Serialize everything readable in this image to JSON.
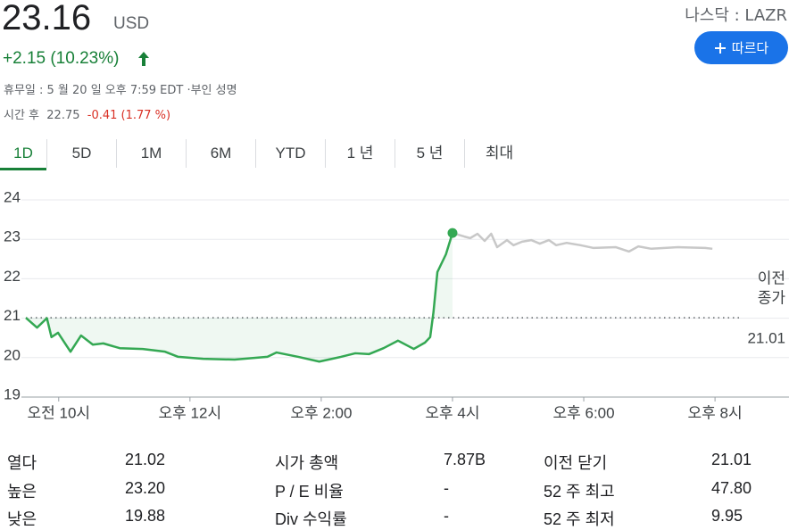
{
  "header": {
    "price": "23.16",
    "currency": "USD",
    "change": "+2.15 (10.23%)",
    "status": "휴무일 : 5 월 20 일 오후 7:59 EDT ·부인 성명",
    "after_hours": {
      "label": "시간 후",
      "price": "22.75",
      "change": "-0.41 (1.77 %)"
    },
    "exchange": "나스닥 : LAZR",
    "follow": "따르다"
  },
  "tabs": [
    "1D",
    "5D",
    "1M",
    "6M",
    "YTD",
    "1 년",
    "5 년",
    "최대"
  ],
  "chart_data": {
    "type": "line",
    "xlim": [
      9.5,
      21.1
    ],
    "ylim": [
      19,
      24
    ],
    "yticks": [
      19,
      20,
      21,
      22,
      23,
      24
    ],
    "xticks": [
      {
        "value": 10,
        "label": "오전 10시"
      },
      {
        "value": 12,
        "label": "오후 12시"
      },
      {
        "value": 14,
        "label": "오후 2:00"
      },
      {
        "value": 16,
        "label": "오후 4시"
      },
      {
        "value": 18,
        "label": "오후 6:00"
      },
      {
        "value": 20,
        "label": "오후 8시"
      }
    ],
    "grid": true,
    "previous_close": {
      "label": [
        "이전",
        "종가"
      ],
      "value": 21.01
    },
    "series": [
      {
        "color": "#34a853",
        "area": true,
        "marker_last": true,
        "x": [
          9.5,
          9.67,
          9.82,
          9.89,
          9.99,
          10.18,
          10.34,
          10.52,
          10.68,
          10.93,
          11.28,
          11.62,
          11.82,
          12.2,
          12.68,
          13.18,
          13.32,
          13.65,
          13.97,
          14.3,
          14.52,
          14.73,
          14.95,
          15.17,
          15.41,
          15.58,
          15.66,
          15.71,
          15.77,
          15.9,
          16.0
        ],
        "values": [
          21.01,
          20.76,
          21.0,
          20.52,
          20.63,
          20.15,
          20.56,
          20.33,
          20.36,
          20.24,
          20.22,
          20.15,
          20.02,
          19.97,
          19.95,
          20.02,
          20.13,
          20.02,
          19.9,
          20.02,
          20.11,
          20.09,
          20.24,
          20.43,
          20.22,
          20.38,
          20.52,
          21.15,
          22.17,
          22.62,
          23.16
        ]
      },
      {
        "color": "#c8c8c8",
        "x": [
          16.0,
          16.18,
          16.27,
          16.38,
          16.49,
          16.59,
          16.68,
          16.83,
          16.93,
          17.06,
          17.2,
          17.33,
          17.47,
          17.58,
          17.74,
          17.95,
          18.15,
          18.49,
          18.69,
          18.83,
          19.03,
          19.44,
          19.85,
          19.96
        ],
        "values": [
          23.16,
          23.07,
          23.03,
          23.14,
          22.96,
          23.14,
          22.8,
          22.98,
          22.85,
          22.94,
          22.98,
          22.89,
          22.98,
          22.85,
          22.91,
          22.85,
          22.78,
          22.8,
          22.69,
          22.82,
          22.76,
          22.8,
          22.78,
          22.76
        ]
      }
    ]
  },
  "stats": [
    [
      [
        "열다",
        "21.02"
      ],
      [
        "높은",
        "23.20"
      ],
      [
        "낮은",
        "19.88"
      ]
    ],
    [
      [
        "시가 총액",
        "7.87B"
      ],
      [
        "P / E 비율",
        "-"
      ],
      [
        "Div 수익률",
        "-"
      ]
    ],
    [
      [
        "이전 닫기",
        "21.01"
      ],
      [
        "52 주 최고",
        "47.80"
      ],
      [
        "52 주 최저",
        "9.95"
      ]
    ]
  ]
}
